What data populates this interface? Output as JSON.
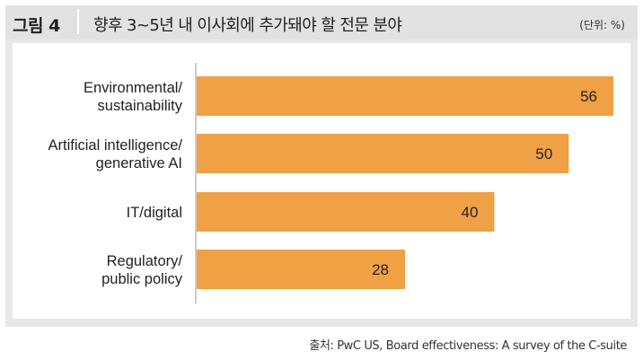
{
  "figure": {
    "label": "그림 4",
    "title": "향후 3~5년 내 이사회에 추가돼야 할 전문 분야",
    "unit": "(단위: %)"
  },
  "source": "출처: PwC US, Board effectiveness: A survey of the C-suite",
  "colors": {
    "bar": "#f0a045",
    "frame": "#e8e8e8",
    "axis": "#999999"
  },
  "chart_data": {
    "type": "bar",
    "orientation": "horizontal",
    "categories": [
      [
        "Environmental/",
        "sustainability"
      ],
      [
        "Artificial intelligence/",
        "generative AI"
      ],
      [
        "IT/digital"
      ],
      [
        "Regulatory/",
        "public policy"
      ]
    ],
    "values": [
      56,
      50,
      40,
      28
    ],
    "xlim": [
      0,
      56
    ],
    "grid": false,
    "legend": "none",
    "data_labels": true
  }
}
